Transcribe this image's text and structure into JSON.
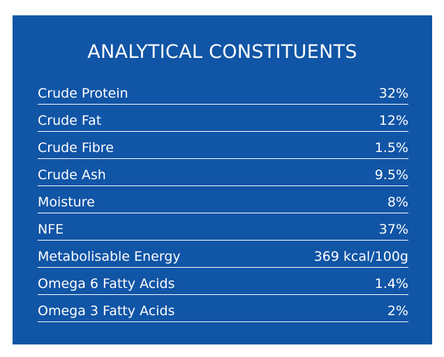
{
  "title": "ANALYTICAL CONSTITUENTS",
  "colors": {
    "panel_background": "#1155a6",
    "text": "#ffffff",
    "divider": "#ffffff"
  },
  "rows": [
    {
      "label": "Crude Protein",
      "value": "32%"
    },
    {
      "label": "Crude Fat",
      "value": "12%"
    },
    {
      "label": "Crude Fibre",
      "value": "1.5%"
    },
    {
      "label": "Crude Ash",
      "value": "9.5%"
    },
    {
      "label": "Moisture",
      "value": "8%"
    },
    {
      "label": "NFE",
      "value": "37%"
    },
    {
      "label": "Metabolisable Energy",
      "value": "369 kcal/100g"
    },
    {
      "label": "Omega 6 Fatty Acids",
      "value": "1.4%"
    },
    {
      "label": "Omega 3 Fatty Acids",
      "value": "2%"
    }
  ]
}
